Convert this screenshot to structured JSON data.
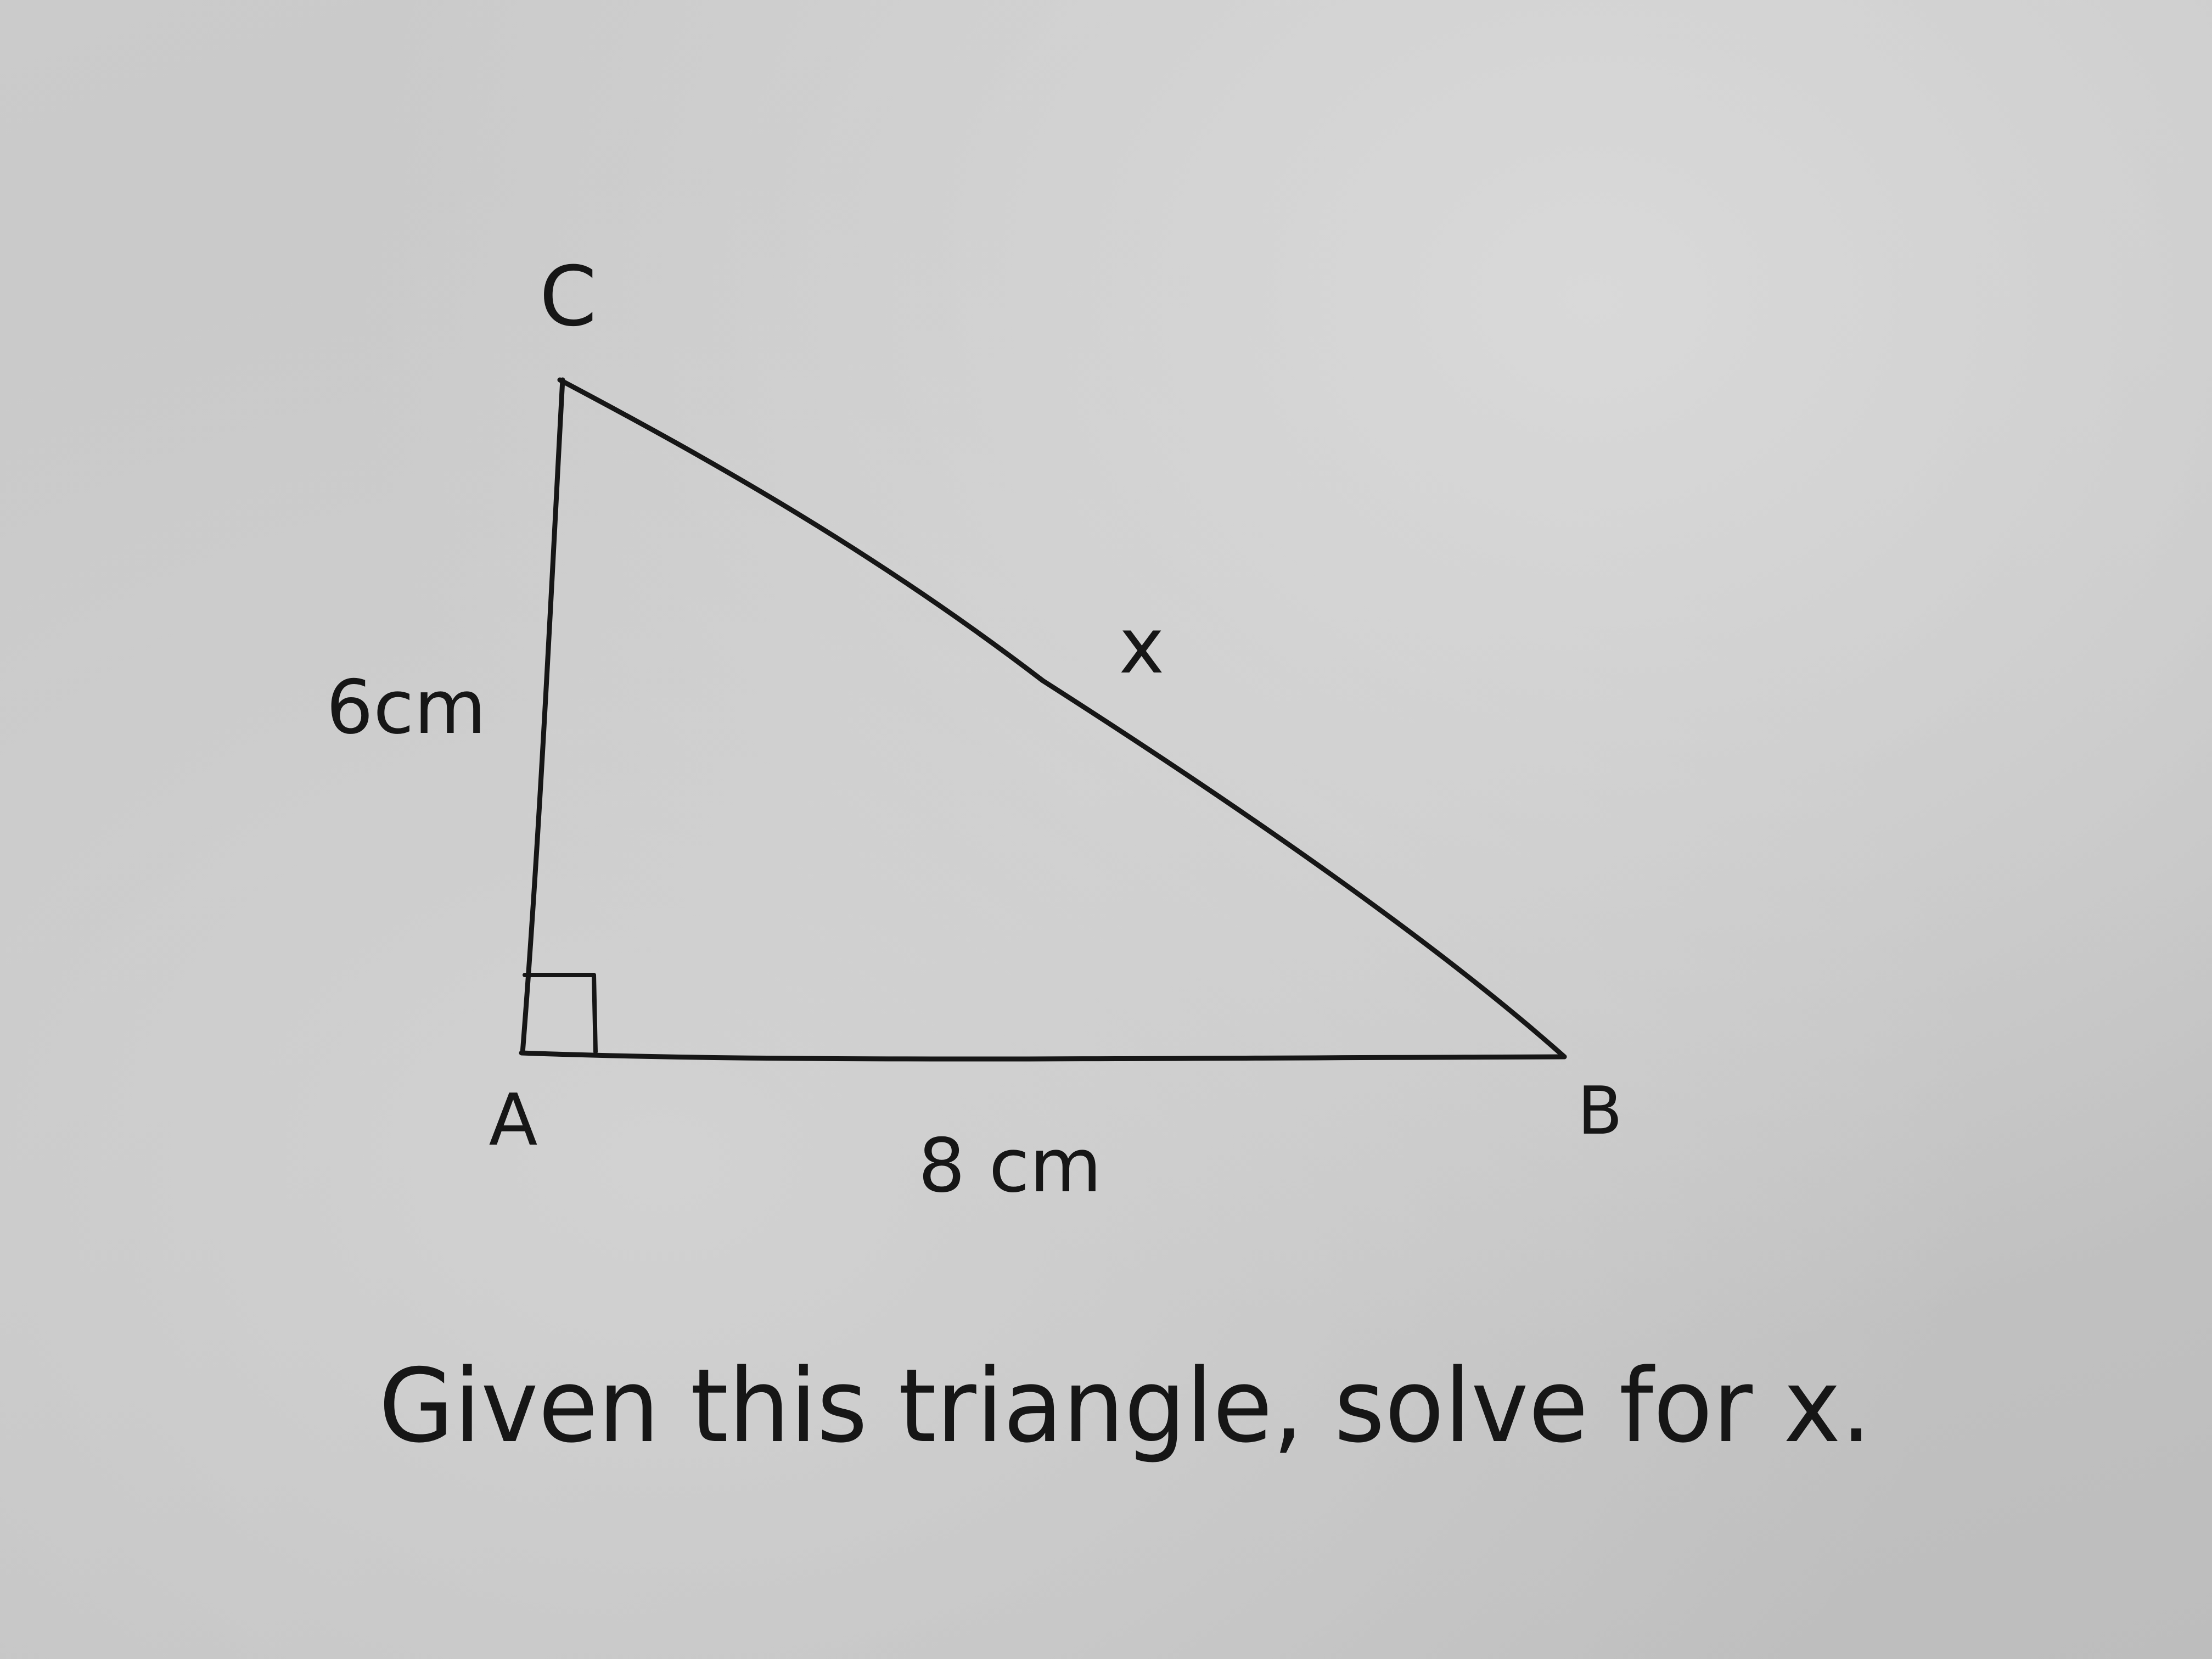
{
  "vertices": {
    "a": "A",
    "b": "B",
    "c": "C"
  },
  "sides": {
    "ac": "6cm",
    "ab": "8 cm",
    "bc": "x"
  },
  "prompt": "Given this triangle, solve for x.",
  "colors": {
    "paper": "#c9c9c9",
    "ink": "#161616"
  }
}
